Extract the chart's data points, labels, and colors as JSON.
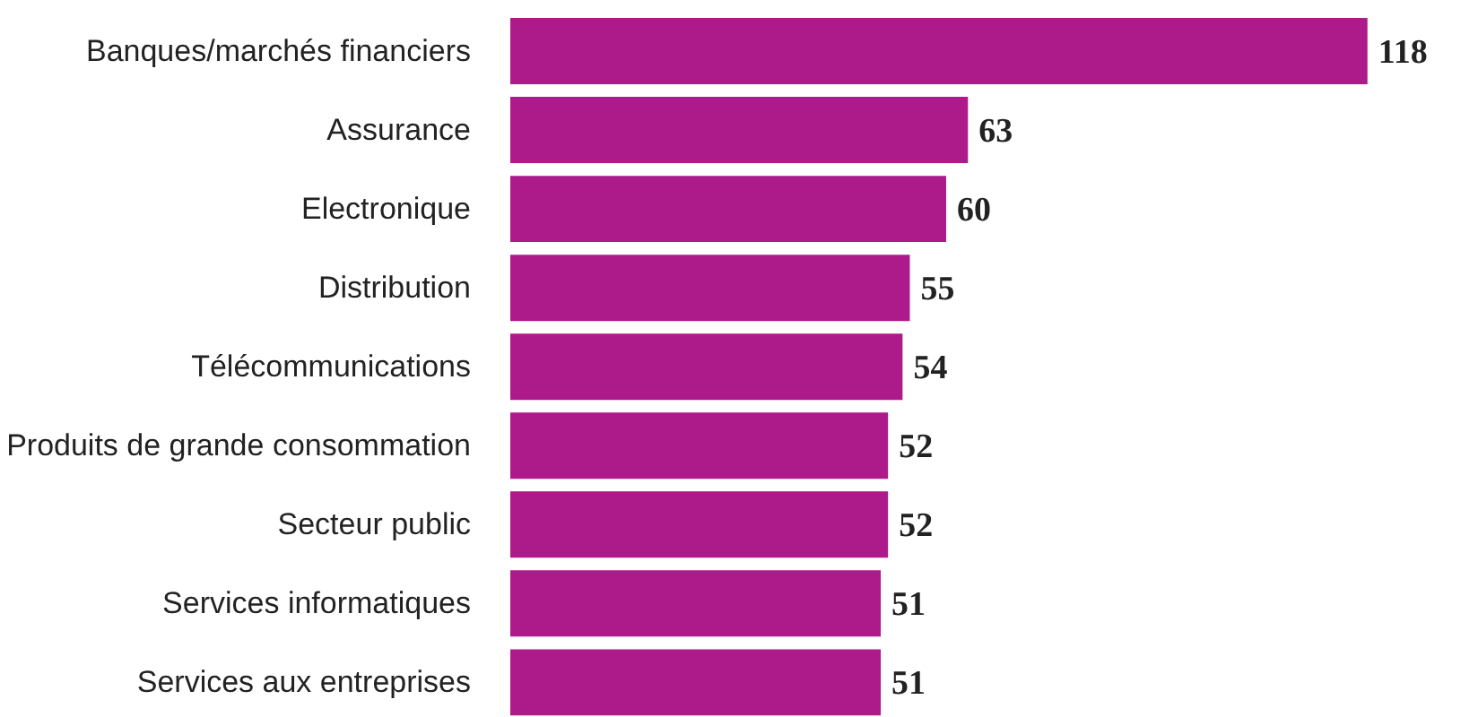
{
  "chart_data": {
    "type": "bar",
    "orientation": "horizontal",
    "categories": [
      "Banques/marchés financiers",
      "Assurance",
      "Electronique",
      "Distribution",
      "Télécommunications",
      "Produits de grande consommation",
      "Secteur public",
      "Services informatiques",
      "Services aux entreprises"
    ],
    "values": [
      118,
      63,
      60,
      55,
      54,
      52,
      52,
      51,
      51
    ],
    "color": "#ad1a8a",
    "data_labels": true
  }
}
